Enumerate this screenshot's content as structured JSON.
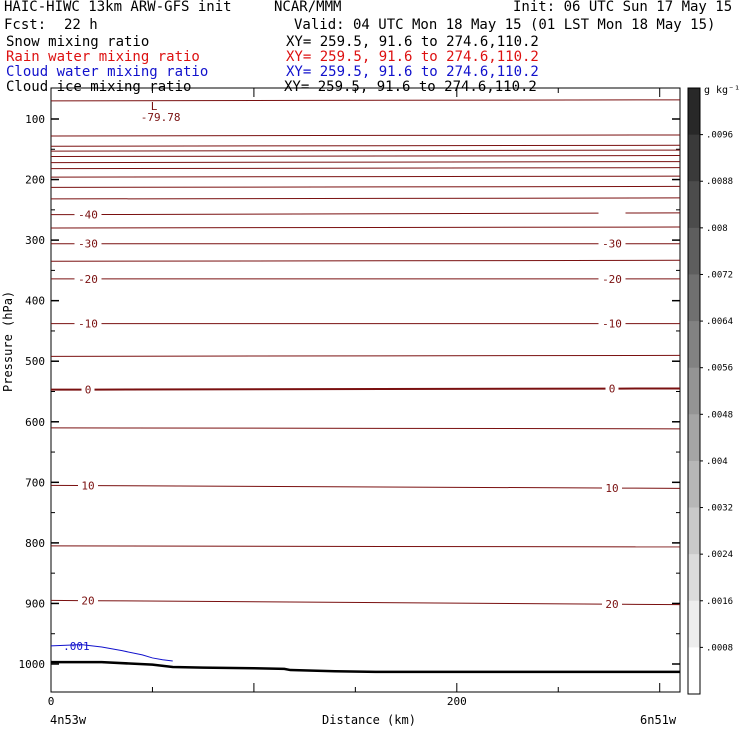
{
  "header": {
    "title": "HAIC-HIWC 13km ARW-GFS init",
    "org": "NCAR/MMM",
    "init": "Init: 06 UTC Sun 17 May 15",
    "fcst_label": "Fcst:",
    "fcst_value": "22 h",
    "valid": "Valid: 04 UTC Mon 18 May 15 (01 LST Mon 18 May 15)",
    "fields": [
      {
        "name": "Snow mixing ratio",
        "xy": "XY= 259.5, 91.6 to 274.6,110.2",
        "color": "#000000"
      },
      {
        "name": "Rain water mixing ratio",
        "xy": "XY= 259.5, 91.6 to 274.6,110.2",
        "color": "#dd1111"
      },
      {
        "name": "Cloud water mixing ratio",
        "xy": "XY= 259.5, 91.6 to 274.6,110.2",
        "color": "#1111cc"
      },
      {
        "name": "Cloud ice mixing ratio",
        "xy": "XY= 259.5, 91.6 to 274.6,110.2",
        "color": "#000000"
      }
    ]
  },
  "chart_data": {
    "type": "line",
    "xlabel": "Distance (km)",
    "ylabel": "Pressure (hPa)",
    "xlim": [
      0,
      310
    ],
    "x_ticks": [
      0,
      200
    ],
    "y_ticks": [
      100,
      200,
      300,
      400,
      500,
      600,
      700,
      800,
      900,
      1000
    ],
    "left_location": "4n53w",
    "right_location": "6n51w",
    "isotherm_color": "#7a1010",
    "isotherms": [
      {
        "label": "-40",
        "p_left": 258,
        "p_right": 255
      },
      {
        "label": "-30",
        "p_left": 306,
        "p_right": 306
      },
      {
        "label": "-20",
        "p_left": 364,
        "p_right": 364
      },
      {
        "label": "-10",
        "p_left": 438,
        "p_right": 438
      },
      {
        "label": "0",
        "p_left": 547,
        "p_right": 545
      },
      {
        "label": "10",
        "p_left": 705,
        "p_right": 710
      },
      {
        "label": "20",
        "p_left": 895,
        "p_right": 902
      }
    ],
    "unlabeled_isotherm_pressures": [
      70,
      128,
      145,
      153,
      162,
      172,
      182,
      196,
      213,
      232,
      280,
      335,
      492,
      610,
      805
    ],
    "low_marker": {
      "label": "L",
      "value": "-79.78",
      "x_km": 60,
      "p": 82
    },
    "cloud_water_contour": {
      "label": ".001",
      "x": [
        0,
        15,
        25,
        35,
        45,
        50,
        55,
        60
      ],
      "p": [
        970,
        968,
        972,
        978,
        985,
        990,
        993,
        995
      ]
    },
    "terrain": {
      "x": [
        0,
        25,
        50,
        60,
        75,
        100,
        115,
        118,
        140,
        160,
        200,
        250,
        310
      ],
      "p": [
        997,
        997,
        1001,
        1005,
        1006,
        1007,
        1008,
        1010,
        1012,
        1013,
        1013,
        1013,
        1013
      ]
    },
    "colorbar": {
      "unit": "g kg⁻¹",
      "tick_labels": [
        ".0096",
        ".0088",
        ".008",
        ".0072",
        ".0064",
        ".0056",
        ".0048",
        ".004",
        ".0032",
        ".0024",
        ".0016",
        ".0008"
      ]
    }
  }
}
